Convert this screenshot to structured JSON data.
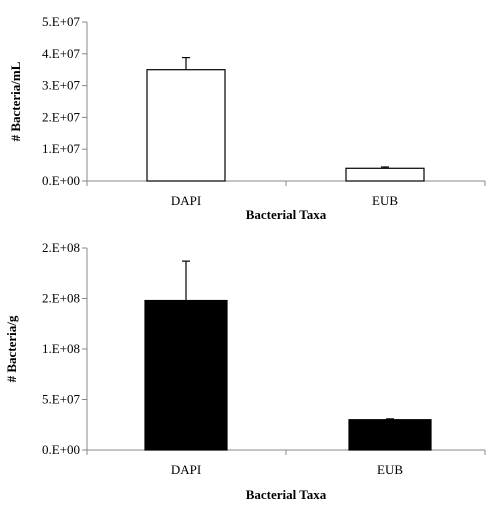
{
  "chart_data": [
    {
      "type": "bar",
      "categories": [
        "DAPI",
        "EUB"
      ],
      "series": [
        {
          "values": [
            35000000,
            4000000
          ],
          "errors": [
            3800000,
            400000
          ]
        }
      ],
      "bar_color": "#ffffff",
      "bar_stroke": "#000000",
      "xlabel": "Bacterial Taxa",
      "ylabel": "# Bacteria/mL",
      "ylim": [
        0,
        50000000
      ],
      "yticks": [
        0,
        10000000,
        20000000,
        30000000,
        40000000,
        50000000
      ],
      "ytick_labels": [
        "0.E+00",
        "1.E+07",
        "2.E+07",
        "3.E+07",
        "4.E+07",
        "5.E+07"
      ],
      "grid": false
    },
    {
      "type": "bar",
      "categories": [
        "DAPI",
        "EUB"
      ],
      "series": [
        {
          "values": [
            148000000,
            30000000
          ],
          "errors": [
            39000000,
            800000
          ]
        }
      ],
      "bar_color": "#000000",
      "bar_stroke": "#000000",
      "xlabel": "Bacterial Taxa",
      "ylabel": "# Bacteria/g",
      "ylim": [
        0,
        200000000
      ],
      "yticks": [
        0,
        50000000,
        100000000,
        150000000,
        200000000
      ],
      "ytick_labels": [
        "0.E+00",
        "5.E+07",
        "1.E+08",
        "2.E+08",
        "2.E+08"
      ],
      "grid": false
    }
  ]
}
